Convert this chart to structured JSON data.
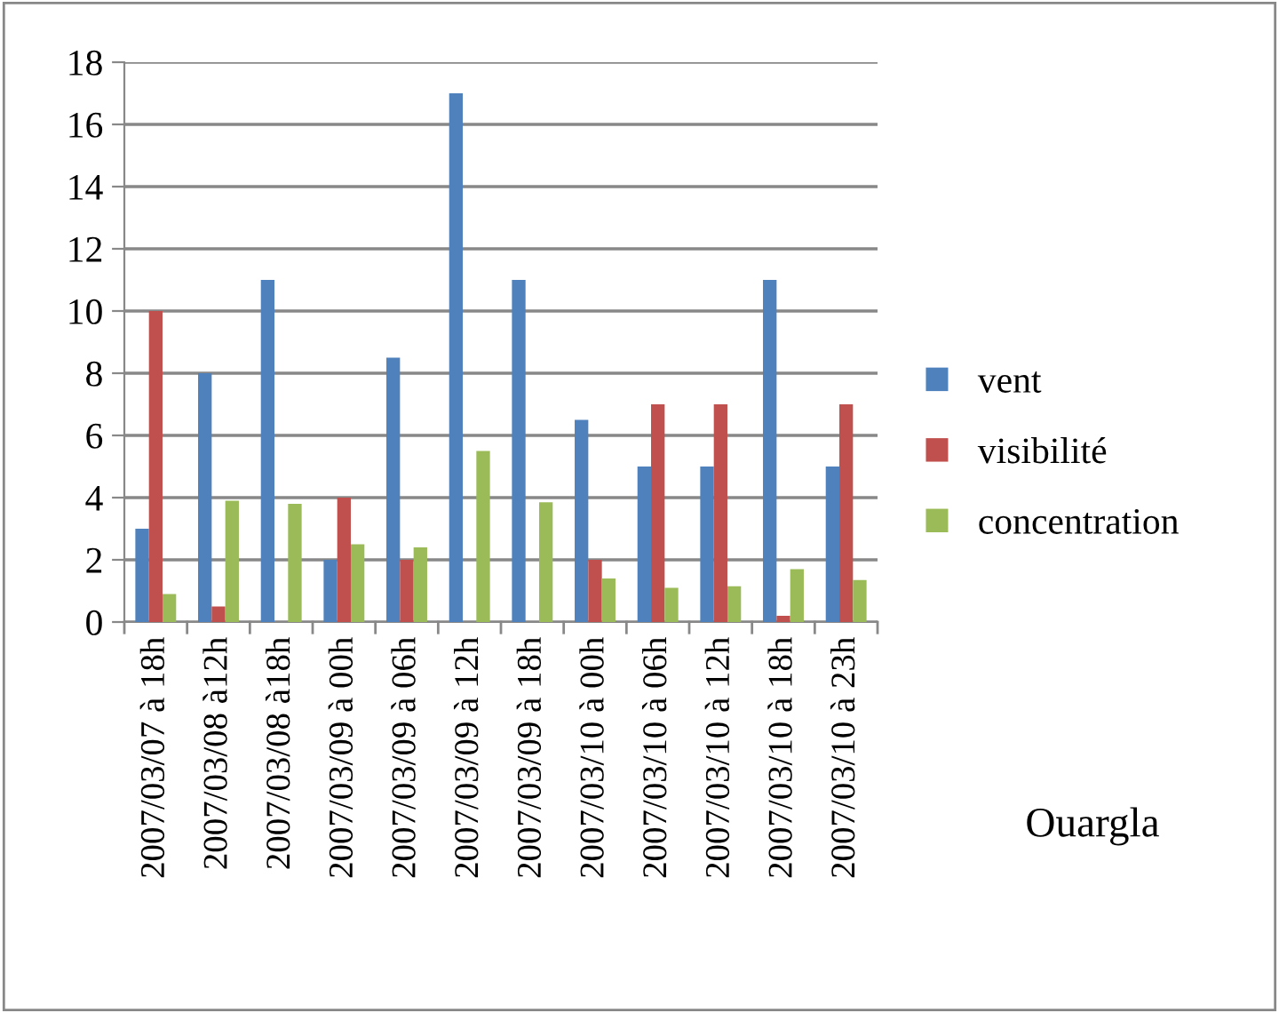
{
  "chart_data": {
    "type": "bar",
    "categories": [
      "2007/03/07 à 18h",
      "2007/03/08 à12h",
      "2007/03/08 à18h",
      "2007/03/09 à 00h",
      "2007/03/09 à 06h",
      "2007/03/09 à 12h",
      "2007/03/09 à 18h",
      "2007/03/10 à 00h",
      "2007/03/10 à 06h",
      "2007/03/10 à 12h",
      "2007/03/10 à 18h",
      "2007/03/10 à 23h"
    ],
    "series": [
      {
        "name": "vent",
        "color": "#4f81bd",
        "values": [
          3,
          8,
          11,
          2,
          8.5,
          17,
          11,
          6.5,
          5,
          5,
          11,
          5
        ]
      },
      {
        "name": "visibilité",
        "color": "#c0504d",
        "values": [
          10,
          0.5,
          null,
          4,
          2,
          null,
          null,
          2,
          7,
          7,
          0.2,
          7
        ]
      },
      {
        "name": "concentration",
        "color": "#9bbb59",
        "values": [
          0.9,
          3.9,
          3.8,
          2.5,
          2.4,
          5.5,
          3.85,
          1.4,
          1.1,
          1.15,
          1.7,
          1.35
        ]
      }
    ],
    "ylim": [
      0,
      18
    ],
    "yticks": [
      0,
      2,
      4,
      6,
      8,
      10,
      12,
      14,
      16,
      18
    ],
    "grid": "y",
    "legend": "right",
    "annotations": [
      "Ouargla"
    ]
  }
}
